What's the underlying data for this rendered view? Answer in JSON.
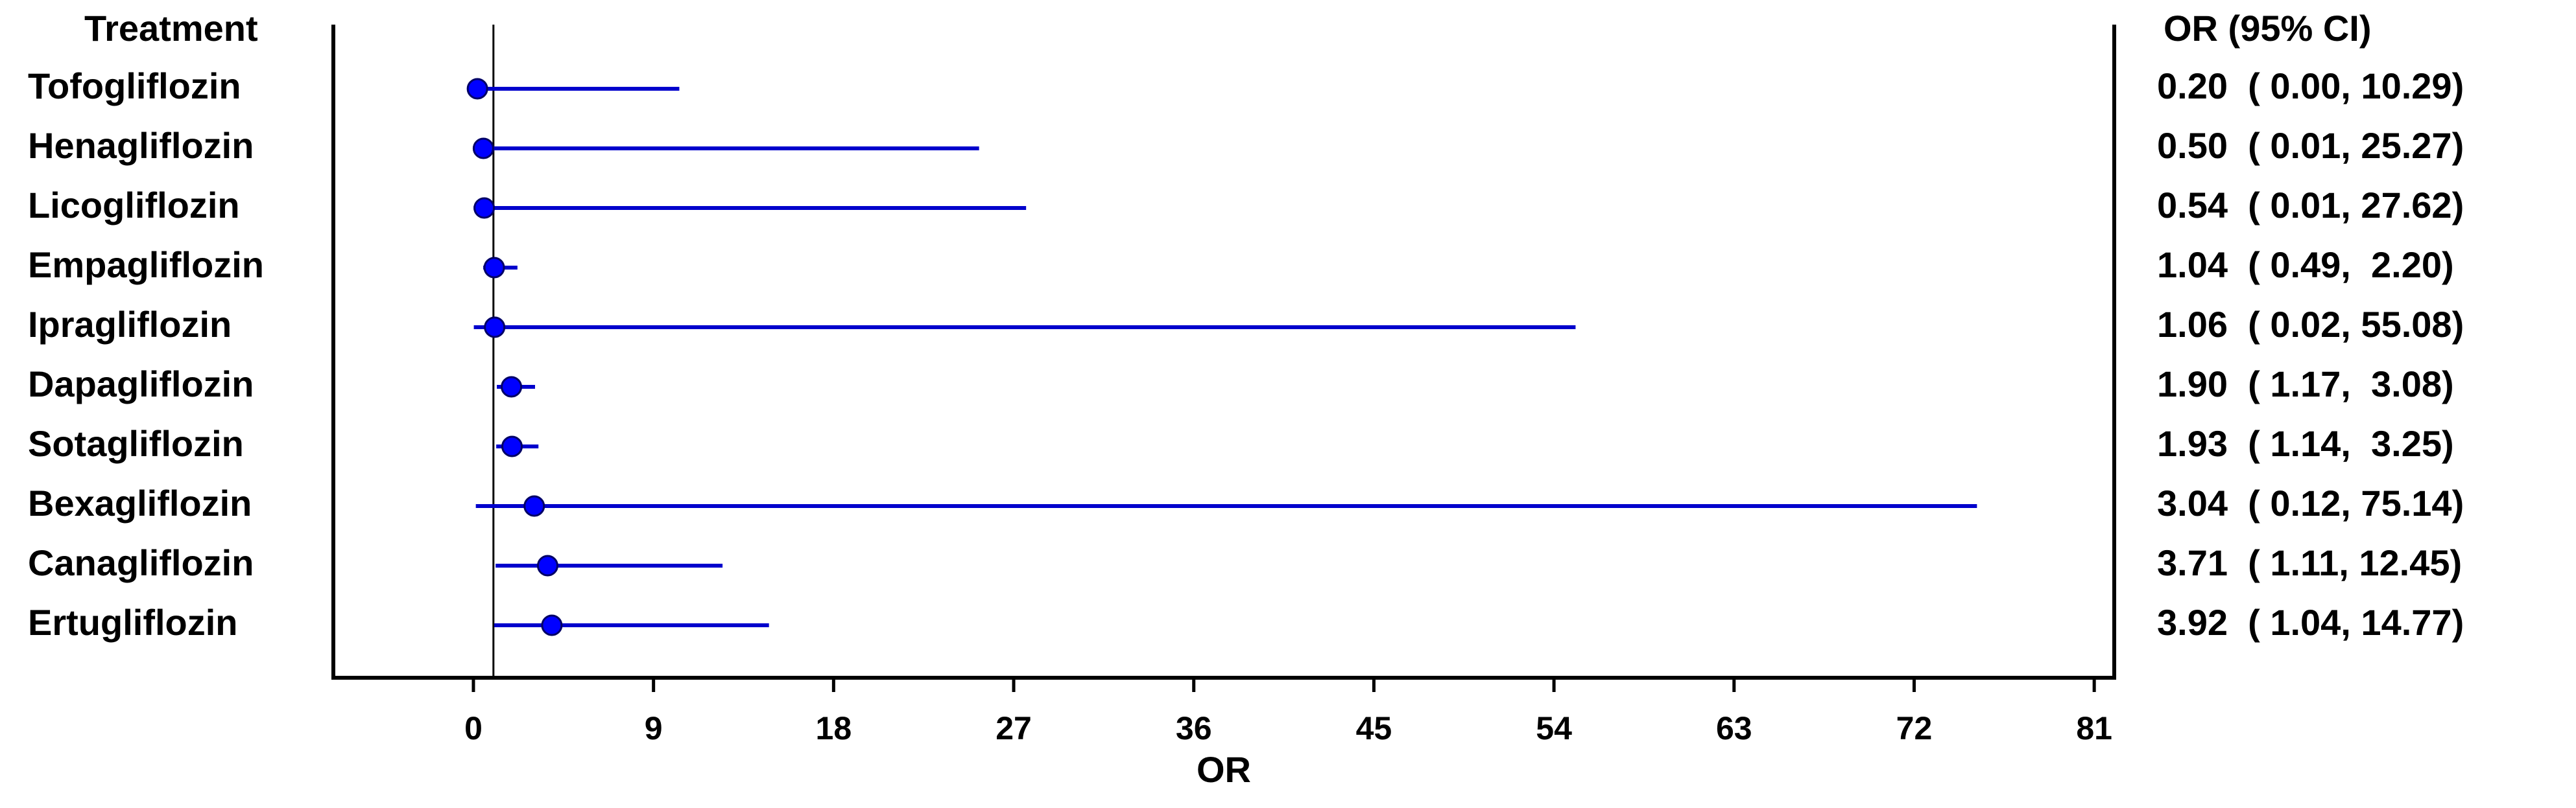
{
  "chart_data": {
    "type": "forest",
    "row_header": "Treatment",
    "value_header": "OR (95% CI)",
    "xlabel": "OR",
    "categories": [
      "Tofogliflozin",
      "Henagliflozin",
      "Licogliflozin",
      "Empagliflozin",
      "Ipragliflozin",
      "Dapagliflozin",
      "Sotagliflozin",
      "Bexagliflozin",
      "Canagliflozin",
      "Ertugliflozin"
    ],
    "values": [
      0.2,
      0.5,
      0.54,
      1.04,
      1.06,
      1.9,
      1.93,
      3.04,
      3.71,
      3.92
    ],
    "lower": [
      0.0,
      0.01,
      0.01,
      0.49,
      0.02,
      1.17,
      1.14,
      0.12,
      1.11,
      1.04
    ],
    "upper": [
      10.29,
      25.27,
      27.62,
      2.2,
      55.08,
      3.08,
      3.25,
      75.14,
      12.45,
      14.77
    ],
    "value_labels": [
      "0.20  ( 0.00, 10.29)",
      "0.50  ( 0.01, 25.27)",
      "0.54  ( 0.01, 27.62)",
      "1.04  ( 0.49,  2.20)",
      "1.06  ( 0.02, 55.08)",
      "1.90  ( 1.17,  3.08)",
      "1.93  ( 1.14,  3.25)",
      "3.04  ( 0.12, 75.14)",
      "3.71  ( 1.11, 12.45)",
      "3.92  ( 1.04, 14.77)"
    ],
    "reference_line": 1,
    "color": "#0000ff",
    "line_color": "#0000cc",
    "xlim": [
      -7,
      82
    ],
    "xticks": [
      0,
      9,
      18,
      27,
      36,
      45,
      54,
      63,
      72,
      81
    ]
  }
}
